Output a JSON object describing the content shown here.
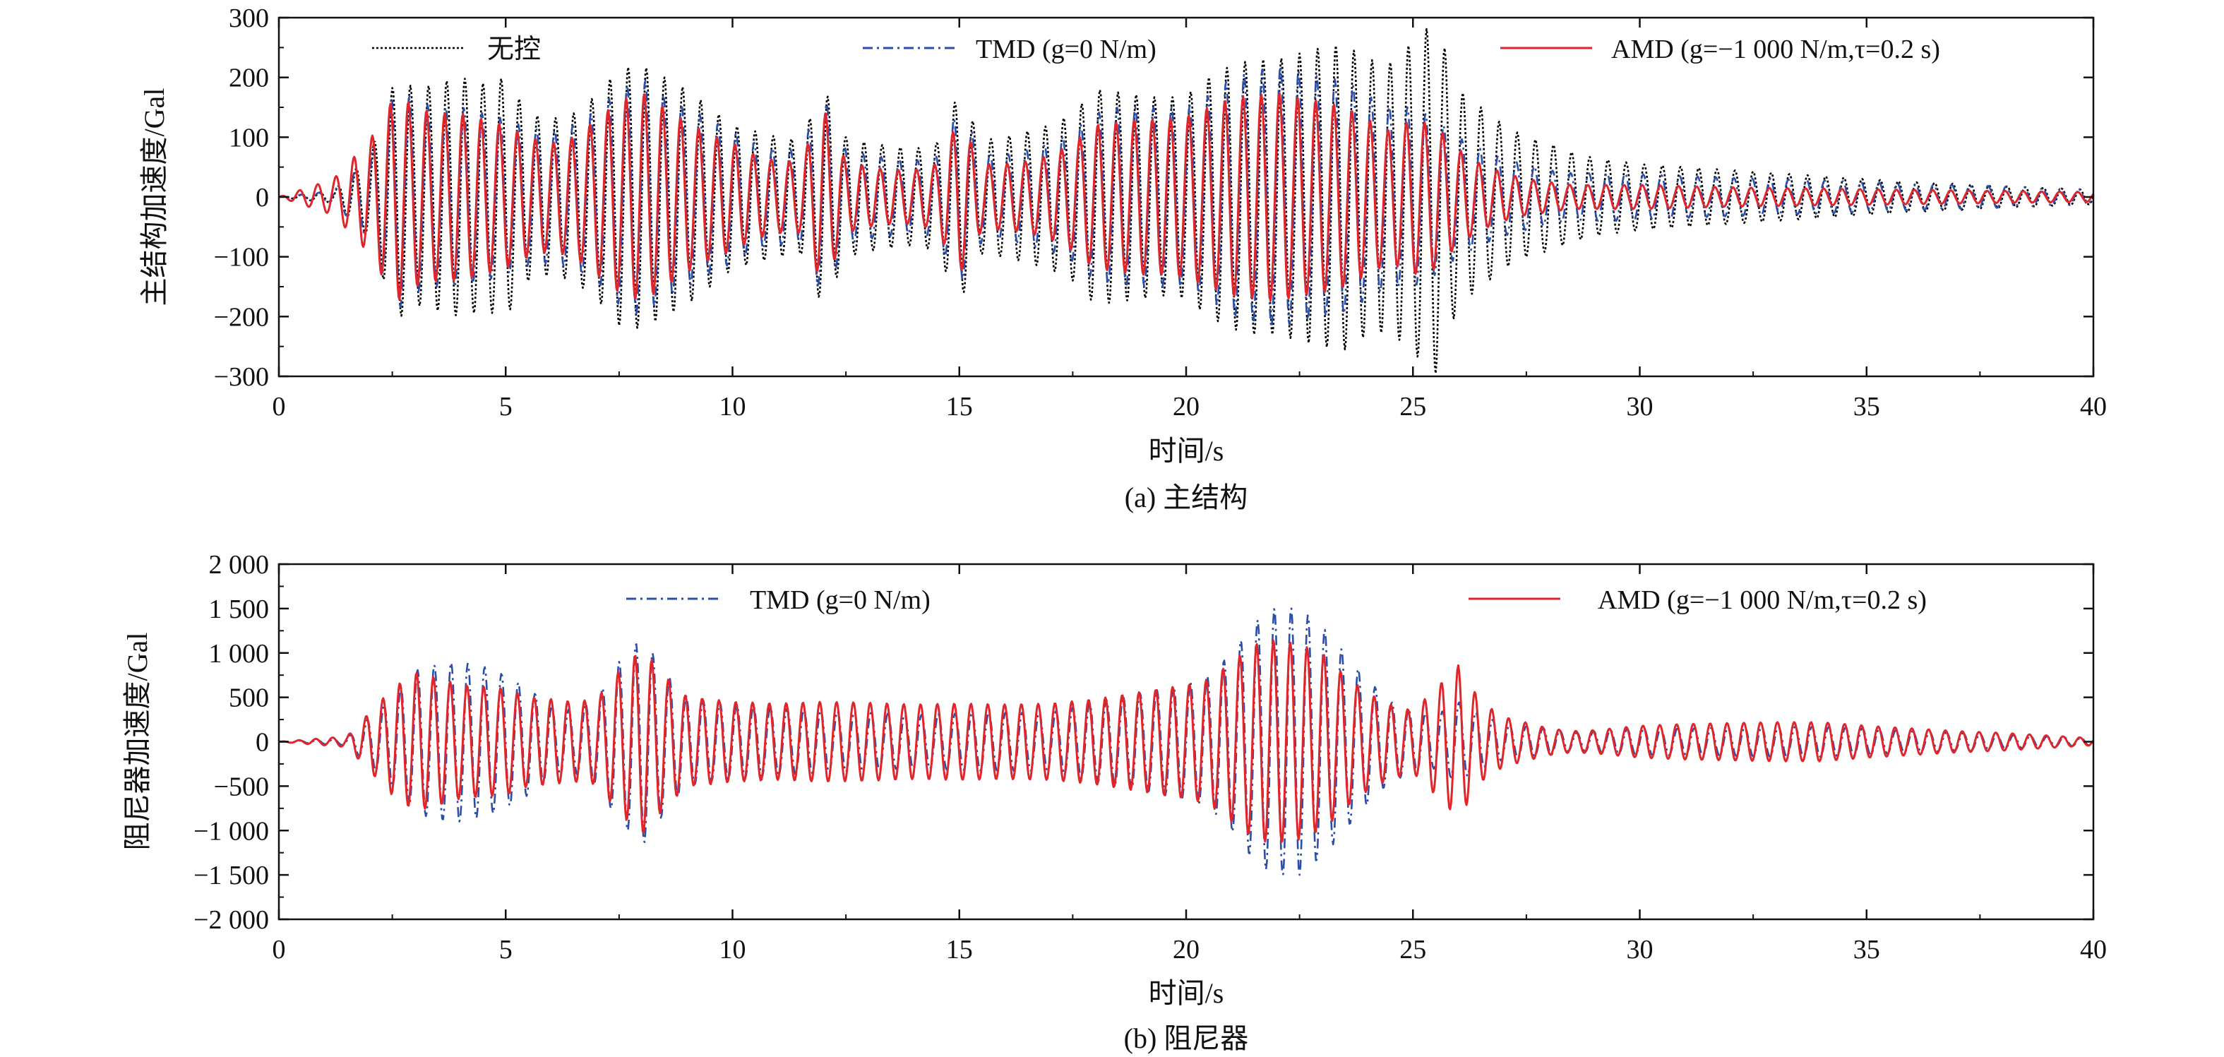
{
  "chart_data": [
    {
      "type": "line",
      "caption": "(a) 主结构",
      "xlabel": "时间/s",
      "ylabel": "主结构加速度/Gal",
      "xlim": [
        0,
        40
      ],
      "ylim": [
        -300,
        300
      ],
      "xticks": [
        "0",
        "5",
        "10",
        "15",
        "20",
        "25",
        "30",
        "35",
        "40"
      ],
      "yticks": [
        "300",
        "200",
        "100",
        "0",
        "−100",
        "−200",
        "−300"
      ],
      "legend_position": "top",
      "series": [
        {
          "name": "无控",
          "color": "#000000",
          "style": "dotted",
          "x": [
            0,
            1.2,
            2,
            2.6,
            3,
            3.5,
            4,
            4.5,
            5,
            5.5,
            6,
            6.5,
            7,
            7.5,
            8,
            8.5,
            9,
            9.5,
            10,
            10.5,
            11,
            11.5,
            12,
            12.5,
            13,
            13.5,
            14,
            14.5,
            15,
            15.5,
            16,
            16.5,
            17,
            17.5,
            18,
            18.5,
            19,
            19.5,
            20,
            20.5,
            21,
            21.5,
            22,
            22.5,
            23,
            23.5,
            24,
            24.5,
            25,
            25.5,
            26,
            26.5,
            27,
            27.5,
            28,
            28.5,
            29,
            29.5,
            30,
            31,
            32,
            33,
            34,
            35,
            36,
            37,
            38,
            39,
            40
          ],
          "amp": [
            0,
            10,
            70,
            205,
            180,
            190,
            200,
            190,
            200,
            140,
            130,
            140,
            170,
            215,
            220,
            200,
            180,
            150,
            120,
            110,
            100,
            95,
            185,
            100,
            90,
            85,
            80,
            90,
            175,
            95,
            100,
            110,
            120,
            140,
            180,
            175,
            170,
            165,
            170,
            200,
            220,
            230,
            230,
            240,
            250,
            255,
            230,
            225,
            260,
            295,
            180,
            150,
            120,
            100,
            90,
            75,
            65,
            60,
            55,
            50,
            45,
            40,
            35,
            30,
            25,
            22,
            18,
            15,
            12
          ],
          "frequency_hz": 2.5
        },
        {
          "name": "TMD (g=0 N/m)",
          "color": "#2b4fa8",
          "style": "dash-dot",
          "x": [
            0,
            1.2,
            2,
            2.6,
            3,
            3.5,
            4,
            4.5,
            5,
            5.5,
            6,
            6.5,
            7,
            7.5,
            8,
            8.5,
            9,
            9.5,
            10,
            10.5,
            11,
            11.5,
            12,
            12.5,
            13,
            13.5,
            14,
            14.5,
            15,
            15.5,
            16,
            16.5,
            17,
            17.5,
            18,
            18.5,
            19,
            19.5,
            20,
            20.5,
            21,
            21.5,
            22,
            22.5,
            23,
            23.5,
            24,
            24.5,
            25,
            25.5,
            26,
            26.5,
            27,
            27.5,
            28,
            28.5,
            29,
            29.5,
            30,
            31,
            32,
            33,
            34,
            35,
            36,
            37,
            38,
            39,
            40
          ],
          "amp": [
            0,
            10,
            70,
            190,
            160,
            150,
            150,
            140,
            130,
            115,
            110,
            120,
            145,
            180,
            200,
            170,
            150,
            130,
            110,
            90,
            80,
            80,
            170,
            80,
            70,
            65,
            60,
            70,
            150,
            75,
            70,
            80,
            90,
            110,
            140,
            150,
            150,
            150,
            150,
            170,
            200,
            210,
            220,
            210,
            200,
            195,
            170,
            150,
            150,
            130,
            100,
            80,
            65,
            55,
            45,
            40,
            40,
            40,
            38,
            35,
            32,
            30,
            28,
            25,
            22,
            20,
            18,
            15,
            12
          ],
          "frequency_hz": 2.5
        },
        {
          "name": "AMD (g=−1 000 N/m,τ=0.2 s)",
          "color": "#e0262b",
          "style": "solid",
          "x": [
            0,
            1.2,
            2,
            2.6,
            3,
            3.5,
            4,
            4.5,
            5,
            5.5,
            6,
            6.5,
            7,
            7.5,
            8,
            8.5,
            9,
            9.5,
            10,
            10.5,
            11,
            11.5,
            12,
            12.5,
            13,
            13.5,
            14,
            14.5,
            15,
            15.5,
            16,
            16.5,
            17,
            17.5,
            18,
            18.5,
            19,
            19.5,
            20,
            20.5,
            21,
            21.5,
            22,
            22.5,
            23,
            23.5,
            24,
            24.5,
            25,
            25.5,
            26,
            26.5,
            27,
            27.5,
            28,
            28.5,
            29,
            29.5,
            30,
            31,
            32,
            33,
            34,
            35,
            36,
            37,
            38,
            39,
            40
          ],
          "amp": [
            0,
            30,
            95,
            175,
            150,
            140,
            140,
            130,
            120,
            100,
            90,
            100,
            130,
            160,
            175,
            150,
            125,
            105,
            90,
            70,
            60,
            60,
            150,
            60,
            50,
            45,
            45,
            55,
            130,
            55,
            55,
            60,
            70,
            90,
            120,
            125,
            130,
            130,
            135,
            150,
            165,
            170,
            175,
            165,
            160,
            150,
            130,
            110,
            130,
            120,
            80,
            55,
            40,
            30,
            25,
            20,
            20,
            20,
            20,
            18,
            16,
            15,
            14,
            13,
            12,
            11,
            10,
            9,
            8
          ],
          "frequency_hz": 2.5
        }
      ]
    },
    {
      "type": "line",
      "caption": "(b) 阻尼器",
      "xlabel": "时间/s",
      "ylabel": "阻尼器加速度/Gal",
      "xlim": [
        0,
        40
      ],
      "ylim": [
        -2000,
        2000
      ],
      "xticks": [
        "0",
        "5",
        "10",
        "15",
        "20",
        "25",
        "30",
        "35",
        "40"
      ],
      "yticks": [
        "2 000",
        "1 500",
        "1 000",
        "500",
        "0",
        "−500",
        "−1 000",
        "−1 500",
        "−2 000"
      ],
      "legend_position": "top",
      "series": [
        {
          "name": "TMD (g=0 N/m)",
          "color": "#2b4fa8",
          "style": "dash-dot",
          "x": [
            0,
            1.5,
            2.5,
            3,
            3.5,
            4,
            4.5,
            5,
            5.5,
            6,
            6.5,
            7,
            7.5,
            8,
            8.5,
            9,
            9.5,
            10,
            11,
            12,
            13,
            14,
            15,
            16,
            17,
            18,
            19,
            20,
            20.5,
            21,
            21.5,
            22,
            22.5,
            23,
            23.5,
            24,
            24.5,
            25,
            25.5,
            26,
            26.5,
            27,
            28,
            28.5,
            29,
            30,
            31,
            32,
            33,
            34,
            35,
            36,
            37,
            38,
            39,
            40
          ],
          "amp": [
            0,
            40,
            500,
            800,
            880,
            900,
            850,
            750,
            600,
            400,
            350,
            500,
            900,
            1180,
            800,
            500,
            450,
            420,
            380,
            350,
            330,
            300,
            320,
            330,
            330,
            450,
            550,
            650,
            750,
            1000,
            1350,
            1520,
            1500,
            1300,
            1000,
            700,
            450,
            350,
            300,
            450,
            300,
            200,
            150,
            100,
            120,
            150,
            150,
            160,
            170,
            170,
            150,
            120,
            100,
            80,
            60,
            40
          ],
          "frequency_hz": 2.7
        },
        {
          "name": "AMD (g=−1 000 N/m,τ=0.2 s)",
          "color": "#e0262b",
          "style": "solid",
          "x": [
            0,
            1.5,
            2.5,
            3,
            3.5,
            4,
            4.5,
            5,
            5.5,
            6,
            6.5,
            7,
            7.5,
            8,
            8.5,
            9,
            9.5,
            10,
            11,
            12,
            13,
            14,
            15,
            16,
            17,
            18,
            19,
            20,
            20.5,
            21,
            21.5,
            22,
            22.5,
            23,
            23.5,
            24,
            24.5,
            25,
            25.5,
            26,
            26.5,
            27,
            28,
            28.5,
            29,
            30,
            31,
            32,
            33,
            34,
            35,
            36,
            37,
            38,
            39,
            40
          ],
          "amp": [
            0,
            60,
            600,
            780,
            720,
            640,
            620,
            600,
            500,
            480,
            450,
            480,
            800,
            1050,
            750,
            500,
            480,
            450,
            430,
            450,
            440,
            420,
            430,
            420,
            430,
            480,
            560,
            640,
            700,
            900,
            1100,
            1150,
            1100,
            1000,
            750,
            550,
            420,
            350,
            600,
            860,
            450,
            280,
            150,
            120,
            130,
            180,
            200,
            210,
            220,
            220,
            180,
            150,
            120,
            100,
            70,
            40
          ],
          "frequency_hz": 2.7
        }
      ]
    }
  ]
}
